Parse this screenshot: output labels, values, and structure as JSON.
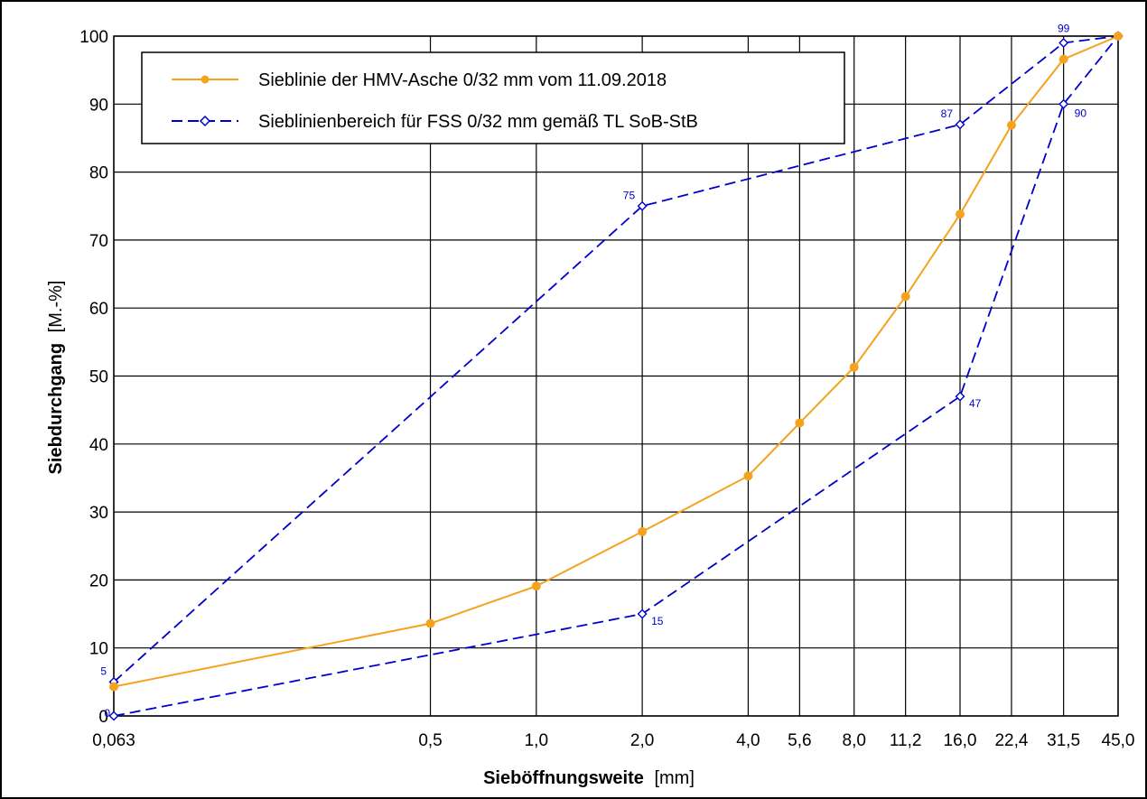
{
  "chart_data": {
    "type": "line",
    "xlabel_bold": "Sieböffnungsweite",
    "xlabel_unit": "[mm]",
    "ylabel_bold": "Siebdurchgang",
    "ylabel_unit": "[M.-%]",
    "ylim": [
      0,
      100
    ],
    "y_ticks": [
      "0",
      "10",
      "20",
      "30",
      "40",
      "50",
      "60",
      "70",
      "80",
      "90",
      "100"
    ],
    "x_categories": [
      "0,063",
      "0,5",
      "1,0",
      "2,0",
      "4,0",
      "5,6",
      "8,0",
      "11,2",
      "16,0",
      "22,4",
      "31,5",
      "45,0"
    ],
    "x_numeric": [
      0.063,
      0.5,
      1.0,
      2.0,
      4.0,
      5.6,
      8.0,
      11.2,
      16.0,
      22.4,
      31.5,
      45.0
    ],
    "x_scale": "log",
    "grid": true,
    "legend_position": "top-left",
    "series": [
      {
        "name": "Sieblinie der HMV-Asche 0/32 mm vom 11.09.2018",
        "color": "#f5a31e",
        "marker": "filled-circle",
        "line": "solid",
        "x": [
          0.063,
          0.5,
          1.0,
          2.0,
          4.0,
          5.6,
          8.0,
          11.2,
          16.0,
          22.4,
          31.5,
          45.0
        ],
        "y": [
          4.3,
          13.6,
          19.1,
          27.1,
          35.3,
          43.1,
          51.3,
          61.7,
          73.8,
          86.9,
          96.6,
          100
        ]
      },
      {
        "name": "Sieblinienbereich für FSS 0/32 mm gemäß TL SoB-StB",
        "color": "#0000cc",
        "marker": "open-diamond",
        "line": "dashed",
        "upper": {
          "x": [
            0.063,
            2.0,
            16.0,
            31.5,
            45.0
          ],
          "y": [
            5,
            75,
            87,
            99,
            100
          ],
          "labels": [
            "5",
            "75",
            "87",
            "99",
            ""
          ]
        },
        "lower": {
          "x": [
            0.063,
            2.0,
            16.0,
            31.5,
            45.0
          ],
          "y": [
            0,
            15,
            47,
            90,
            100
          ],
          "labels": [
            "0",
            "15",
            "47",
            "90",
            ""
          ]
        }
      }
    ]
  }
}
